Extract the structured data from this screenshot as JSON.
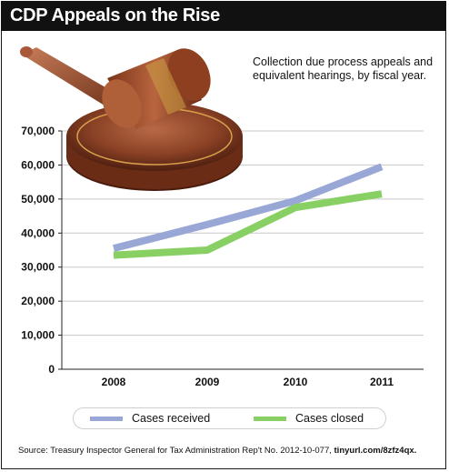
{
  "header": {
    "title": "CDP Appeals on the Rise",
    "subtitle": "Collection due process appeals and equivalent hearings, by fiscal year."
  },
  "source": {
    "text": "Source: Treasury Inspector General for Tax Administration Rep't No. 2012-10-077,",
    "link": "tinyurl.com/8zfz4qx."
  },
  "illustration": {
    "icon": "gavel-icon"
  },
  "chart_data": {
    "type": "line",
    "title": "CDP Appeals on the Rise",
    "subtitle": "Collection due process appeals and equivalent hearings, by fiscal year.",
    "xlabel": "",
    "ylabel": "",
    "categories": [
      "2008",
      "2009",
      "2010",
      "2011"
    ],
    "ylim": [
      0,
      70000
    ],
    "yticks": [
      "0",
      "10,000",
      "20,000",
      "30,000",
      "40,000",
      "50,000",
      "60,000",
      "70,000"
    ],
    "grid": true,
    "legend_position": "bottom",
    "series": [
      {
        "name": "Cases received",
        "color": "#98a7d6",
        "values": [
          35500,
          42500,
          49500,
          59500
        ]
      },
      {
        "name": "Cases closed",
        "color": "#88d063",
        "values": [
          33500,
          35000,
          47500,
          51500
        ]
      }
    ]
  }
}
